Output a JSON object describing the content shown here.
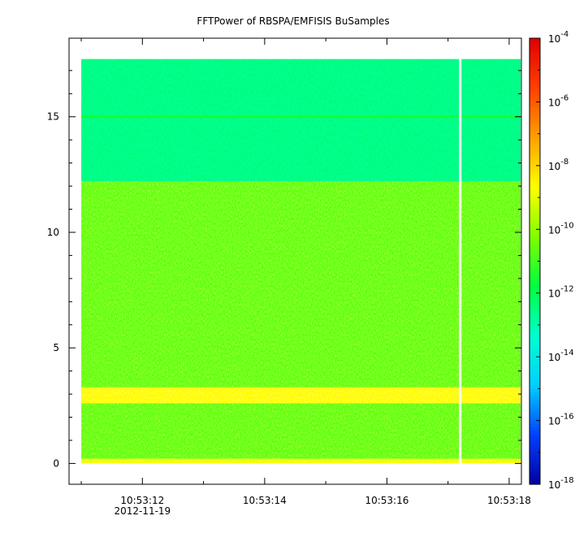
{
  "chart_data": {
    "type": "heatmap",
    "title": "FFTPower of RBSPA/EMFISIS  BuSamples",
    "xlabel": "",
    "ylabel": "",
    "x_ticks": [
      {
        "label": "10:53:12",
        "value": 12
      },
      {
        "label": "10:53:14",
        "value": 14
      },
      {
        "label": "10:53:16",
        "value": 16
      },
      {
        "label": "10:53:18",
        "value": 18
      }
    ],
    "x_sublabel": {
      "label": "2012-11-19",
      "value": 12
    },
    "xlim": [
      10.8,
      18.2
    ],
    "data_x_range": [
      11.0,
      18.2
    ],
    "gap_x": 17.2,
    "y_ticks": [
      0,
      5,
      10,
      15
    ],
    "ylim": [
      -0.9,
      18.4
    ],
    "data_y_range": [
      0,
      17.5
    ],
    "colorbar": {
      "scale": "log",
      "range_exponents": [
        -18,
        -4
      ],
      "tick_exponents": [
        -18,
        -16,
        -14,
        -12,
        -10,
        -8,
        -6,
        -4
      ],
      "tick_base": "10",
      "colors": [
        "#0000a0",
        "#0040ff",
        "#00d0ff",
        "#00ffd0",
        "#00ff40",
        "#80ff00",
        "#ffff00",
        "#ffa000",
        "#ff4000",
        "#e00000"
      ]
    },
    "bands": [
      {
        "y_from": 12.2,
        "y_to": 17.5,
        "level_exponent": -12.6
      },
      {
        "y_from": 0.2,
        "y_to": 12.2,
        "level_exponent": -10.6
      },
      {
        "y_from": 2.6,
        "y_to": 3.3,
        "level_exponent": -8.6
      },
      {
        "y_from": 0.0,
        "y_to": 0.2,
        "level_exponent": -8.8
      },
      {
        "y_from": 14.95,
        "y_to": 15.05,
        "level_exponent": -11.5
      }
    ],
    "grid": false
  }
}
